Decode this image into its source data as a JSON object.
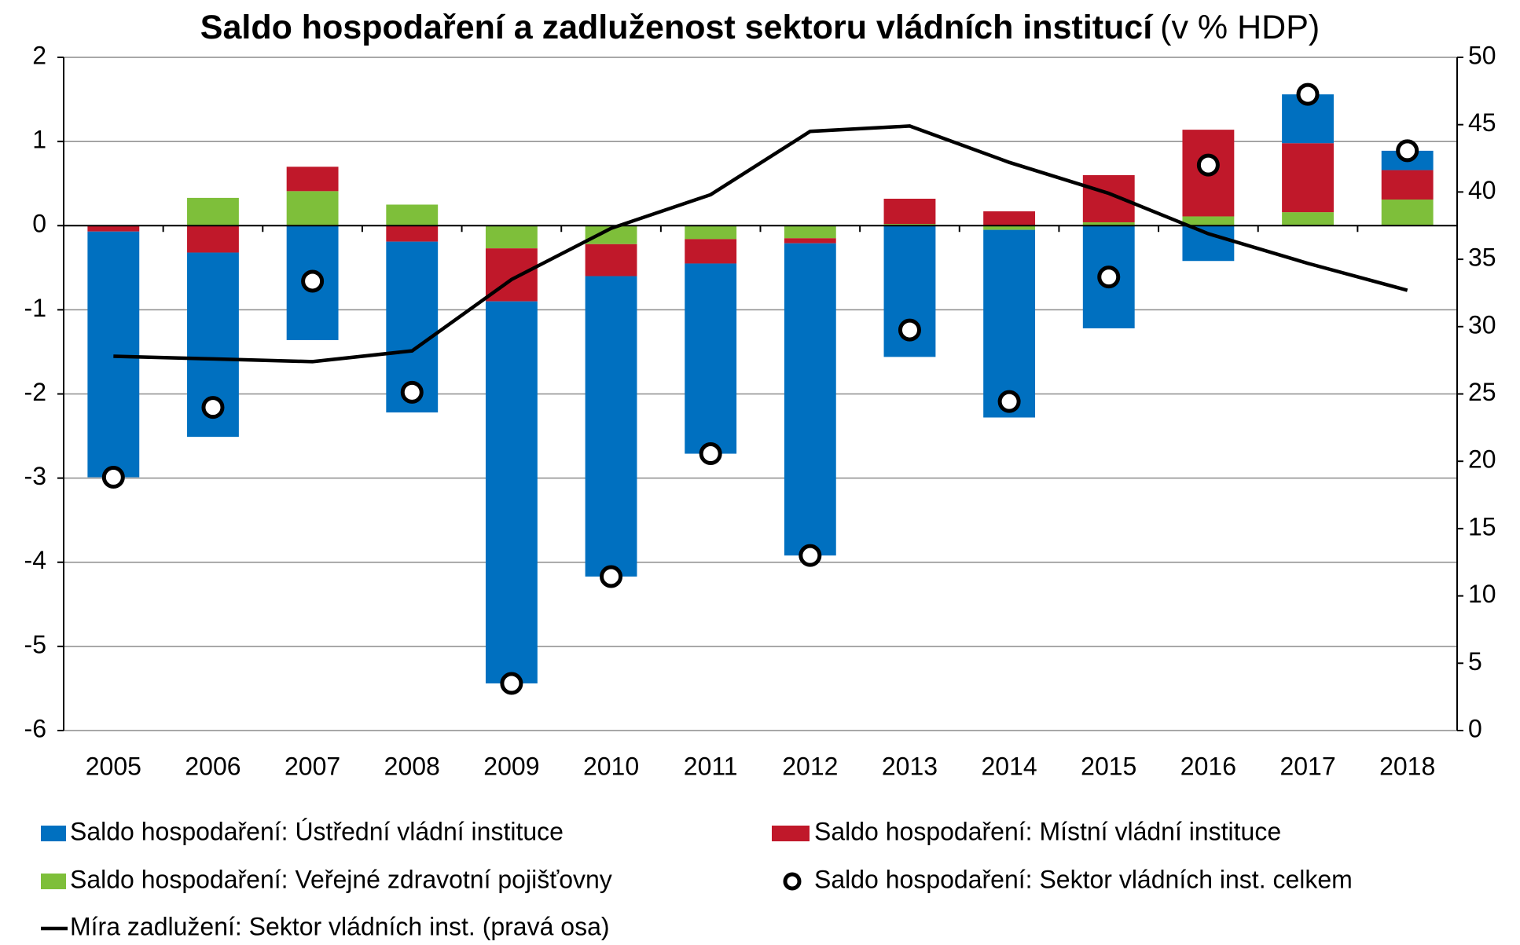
{
  "chart_data": {
    "type": "bar",
    "title": "Saldo hospodaření a zadluženost sektoru vládních institucí",
    "subtitle": "(v % HDP)",
    "categories": [
      "2005",
      "2006",
      "2007",
      "2008",
      "2009",
      "2010",
      "2011",
      "2012",
      "2013",
      "2014",
      "2015",
      "2016",
      "2017",
      "2018"
    ],
    "series": [
      {
        "name": "Saldo hospodaření: Ústřední vládní instituce",
        "type": "bar",
        "color": "#0070c0",
        "values": [
          -2.92,
          -2.19,
          -1.36,
          -2.03,
          -4.54,
          -3.57,
          -2.26,
          -3.71,
          -1.56,
          -2.23,
          -1.22,
          -0.42,
          0.58,
          0.23
        ]
      },
      {
        "name": "Saldo hospodaření: Místní vládní instituce",
        "type": "bar",
        "color": "#c0182a",
        "values": [
          -0.07,
          -0.32,
          0.29,
          -0.19,
          -0.63,
          -0.38,
          -0.29,
          -0.06,
          0.3,
          0.17,
          0.56,
          1.03,
          0.82,
          0.35
        ]
      },
      {
        "name": "Saldo hospodaření: Veřejné zdravotní pojišťovny",
        "type": "bar",
        "color": "#7ebf3a",
        "values": [
          0,
          0.33,
          0.41,
          0.25,
          -0.27,
          -0.22,
          -0.16,
          -0.15,
          0.02,
          -0.05,
          0.04,
          0.11,
          0.16,
          0.31
        ]
      },
      {
        "name": "Saldo hospodaření: Sektor vládních inst. celkem",
        "type": "scatter",
        "color": "#000000",
        "values": [
          -2.99,
          -2.16,
          -0.66,
          -1.98,
          -5.44,
          -4.17,
          -2.71,
          -3.92,
          -1.24,
          -2.09,
          -0.61,
          0.72,
          1.56,
          0.89
        ]
      },
      {
        "name": "Míra zadlužení: Sektor vládních inst. (pravá osa)",
        "type": "line",
        "color": "#000000",
        "axis": "y2",
        "values": [
          27.8,
          27.6,
          27.4,
          28.2,
          33.5,
          37.3,
          39.8,
          44.5,
          44.9,
          42.2,
          39.9,
          36.9,
          34.7,
          32.7
        ]
      }
    ],
    "ylim": [
      -6,
      2
    ],
    "yticks": [
      -6,
      -5,
      -4,
      -3,
      -2,
      -1,
      0,
      1,
      2
    ],
    "y2lim": [
      0,
      50
    ],
    "y2ticks": [
      0,
      5,
      10,
      15,
      20,
      25,
      30,
      35,
      40,
      45,
      50
    ],
    "grid": true
  }
}
